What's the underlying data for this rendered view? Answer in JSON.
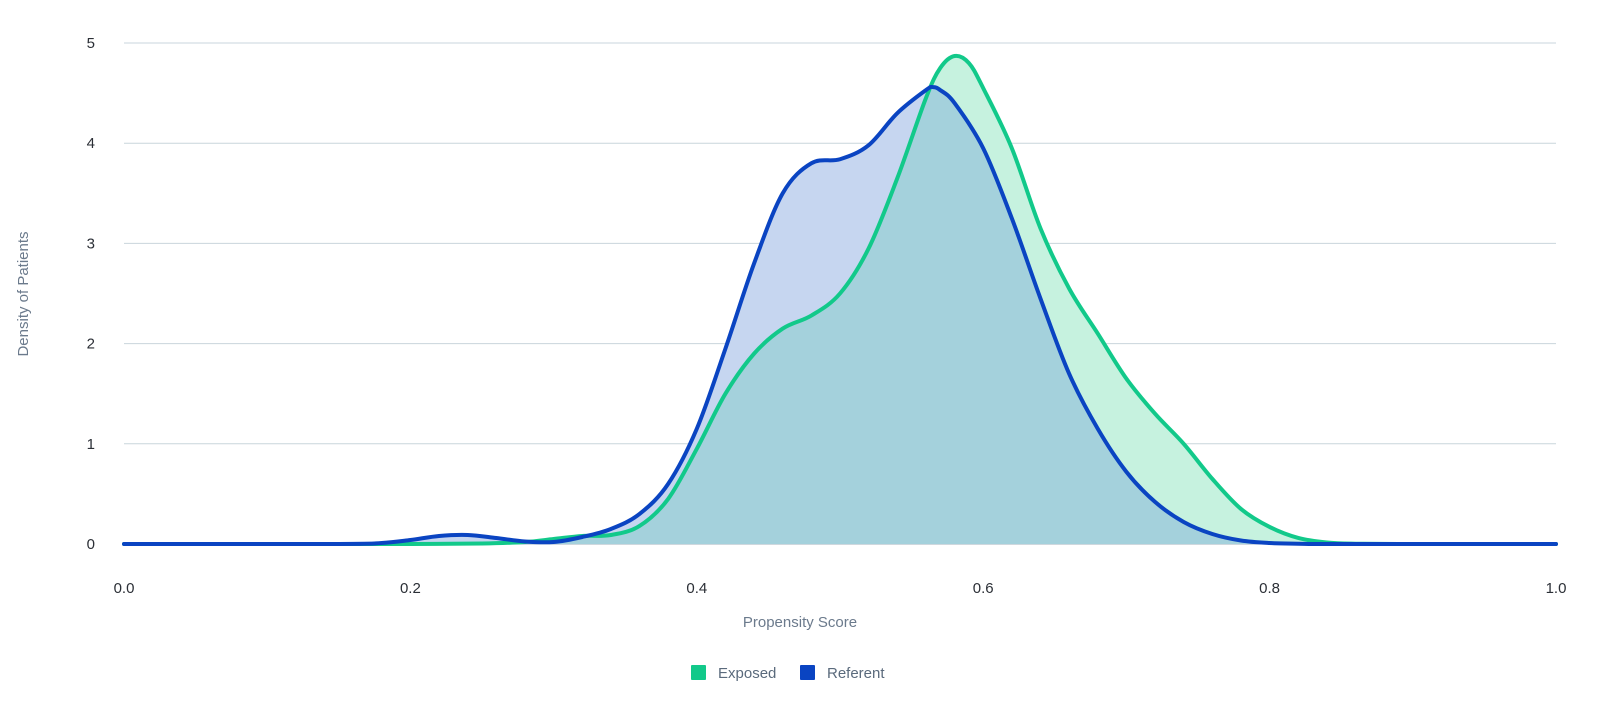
{
  "chart_data": {
    "type": "area",
    "title": "",
    "xlabel": "Propensity Score",
    "ylabel": "Density of Patients",
    "xlim": [
      0.0,
      1.0
    ],
    "ylim": [
      0,
      5
    ],
    "xticks": [
      "0.0",
      "0.2",
      "0.4",
      "0.6",
      "0.8",
      "1.0"
    ],
    "yticks": [
      "0",
      "1",
      "2",
      "3",
      "4",
      "5"
    ],
    "grid": true,
    "legend_position": "bottom-center",
    "series": [
      {
        "name": "Exposed",
        "color": "#12c98a",
        "fill": "#c6f2df",
        "x": [
          0.0,
          0.15,
          0.2,
          0.25,
          0.28,
          0.3,
          0.32,
          0.34,
          0.36,
          0.38,
          0.4,
          0.42,
          0.44,
          0.46,
          0.48,
          0.5,
          0.52,
          0.54,
          0.56,
          0.57,
          0.58,
          0.59,
          0.6,
          0.62,
          0.64,
          0.66,
          0.68,
          0.7,
          0.72,
          0.74,
          0.76,
          0.78,
          0.8,
          0.82,
          0.84,
          0.86,
          0.9,
          1.0
        ],
        "y": [
          0,
          0,
          0,
          0.005,
          0.02,
          0.05,
          0.08,
          0.09,
          0.18,
          0.45,
          0.95,
          1.5,
          1.9,
          2.15,
          2.28,
          2.5,
          2.95,
          3.65,
          4.45,
          4.75,
          4.87,
          4.8,
          4.55,
          3.95,
          3.15,
          2.55,
          2.1,
          1.65,
          1.3,
          1.0,
          0.65,
          0.35,
          0.17,
          0.06,
          0.015,
          0.003,
          0,
          0
        ]
      },
      {
        "name": "Referent",
        "color": "#0a44c2",
        "fill": "#c6d6f0",
        "x": [
          0.0,
          0.15,
          0.18,
          0.2,
          0.22,
          0.24,
          0.26,
          0.28,
          0.3,
          0.32,
          0.34,
          0.36,
          0.38,
          0.4,
          0.42,
          0.44,
          0.46,
          0.48,
          0.5,
          0.52,
          0.54,
          0.56,
          0.565,
          0.57,
          0.58,
          0.6,
          0.62,
          0.64,
          0.66,
          0.68,
          0.7,
          0.72,
          0.74,
          0.76,
          0.78,
          0.8,
          0.82,
          0.85,
          1.0
        ],
        "y": [
          0,
          0,
          0.01,
          0.04,
          0.08,
          0.09,
          0.06,
          0.025,
          0.02,
          0.07,
          0.15,
          0.3,
          0.6,
          1.15,
          1.95,
          2.8,
          3.5,
          3.8,
          3.84,
          3.98,
          4.3,
          4.53,
          4.56,
          4.53,
          4.4,
          3.95,
          3.25,
          2.45,
          1.7,
          1.15,
          0.72,
          0.42,
          0.22,
          0.1,
          0.035,
          0.01,
          0.003,
          0,
          0
        ]
      }
    ],
    "overlap_fill": "#a4d1dc"
  }
}
